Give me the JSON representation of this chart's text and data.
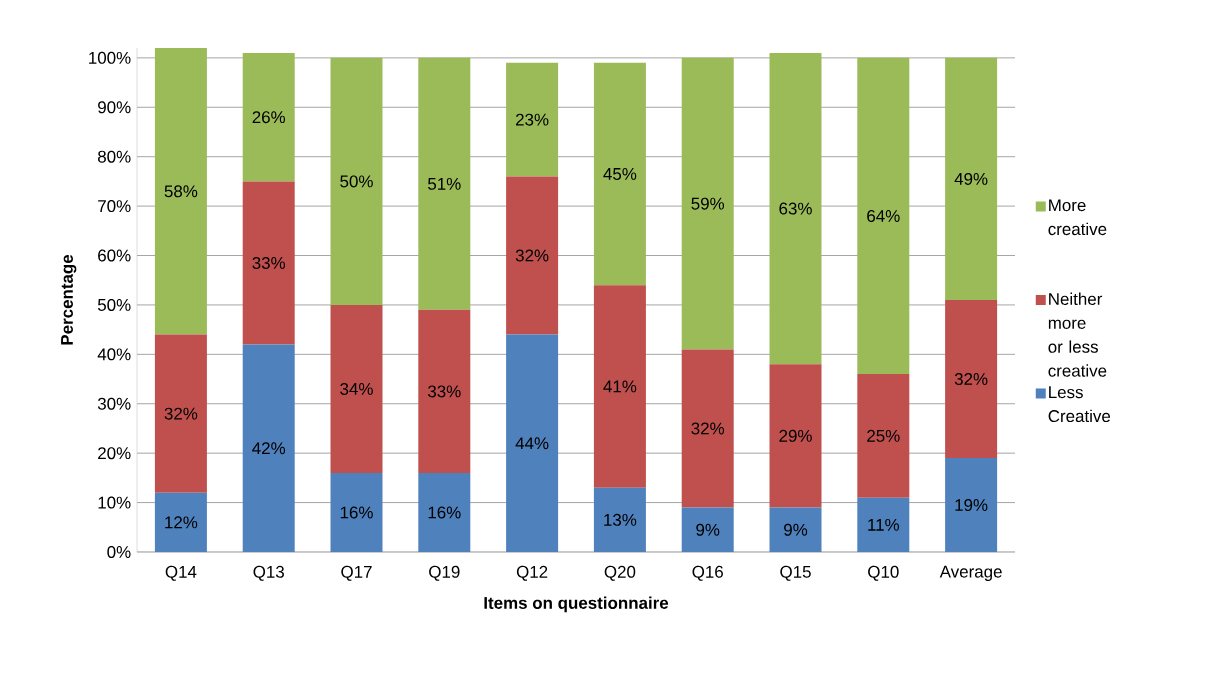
{
  "chart_data": {
    "type": "bar",
    "stacked": true,
    "xlabel": "Items on questionnaire",
    "ylabel": "Percentage",
    "categories": [
      "Q14",
      "Q13",
      "Q17",
      "Q19",
      "Q12",
      "Q20",
      "Q16",
      "Q15",
      "Q10",
      "Average"
    ],
    "series": [
      {
        "name": "Less Creative",
        "color": "#4f81bd",
        "values": [
          12,
          42,
          16,
          16,
          44,
          13,
          9,
          9,
          11,
          19
        ],
        "value_labels": [
          "12%",
          "42%",
          "16%",
          "16%",
          "44%",
          "13%",
          "9%",
          "9%",
          "11%",
          "19%"
        ]
      },
      {
        "name": "Neither more or less creative",
        "color": "#c0504d",
        "values": [
          32,
          33,
          34,
          33,
          32,
          41,
          32,
          29,
          25,
          32
        ],
        "value_labels": [
          "32%",
          "33%",
          "34%",
          "33%",
          "32%",
          "41%",
          "32%",
          "29%",
          "25%",
          "32%"
        ]
      },
      {
        "name": "More creative",
        "color": "#9bbb59",
        "values": [
          58,
          26,
          50,
          51,
          23,
          45,
          59,
          63,
          64,
          49
        ],
        "value_labels": [
          "58%",
          "26%",
          "50%",
          "51%",
          "23%",
          "45%",
          "59%",
          "63%",
          "64%",
          "49%"
        ]
      }
    ],
    "ylim": [
      0,
      102
    ],
    "yticks": [
      {
        "value": 0,
        "label": "0%"
      },
      {
        "value": 10,
        "label": "10%"
      },
      {
        "value": 20,
        "label": "20%"
      },
      {
        "value": 30,
        "label": "30%"
      },
      {
        "value": 40,
        "label": "40%"
      },
      {
        "value": 50,
        "label": "50%"
      },
      {
        "value": 60,
        "label": "60%"
      },
      {
        "value": 70,
        "label": "70%"
      },
      {
        "value": 80,
        "label": "80%"
      },
      {
        "value": 90,
        "label": "90%"
      },
      {
        "value": 100,
        "label": "100%"
      }
    ],
    "grid": "y",
    "legend": "right"
  }
}
